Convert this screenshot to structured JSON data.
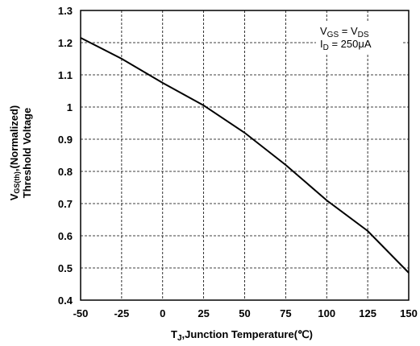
{
  "chart_data": {
    "type": "line",
    "xlabel": {
      "main": "T",
      "sub": "J",
      "rest": ",Junction Temperature(℃)"
    },
    "ylabel": {
      "line1_main": "V",
      "line1_sub": "GS(th)",
      "line1_rest": ",(Normalized)",
      "line2": "Threshold Voltage"
    },
    "xlim": [
      -50,
      150
    ],
    "ylim": [
      0.4,
      1.3
    ],
    "x_ticks": [
      "-50",
      "-25",
      "0",
      "25",
      "50",
      "75",
      "100",
      "125",
      "150"
    ],
    "y_ticks": [
      "0.4",
      "0.5",
      "0.6",
      "0.7",
      "0.8",
      "0.9",
      "1",
      "1.1",
      "1.2",
      "1.3"
    ],
    "grid": true,
    "legend_position": "top-right",
    "annotation": {
      "line1": {
        "a": "V",
        "a_sub": "GS",
        "eq": " = V",
        "b_sub": "DS"
      },
      "line2": {
        "a": "I",
        "a_sub": "D",
        "rest": " = 250μA"
      }
    },
    "series": [
      {
        "x": [
          -50,
          -25,
          0,
          25,
          50,
          75,
          100,
          125,
          150
        ],
        "y": [
          1.215,
          1.15,
          1.075,
          1.005,
          0.92,
          0.82,
          0.71,
          0.615,
          0.485
        ]
      }
    ]
  }
}
